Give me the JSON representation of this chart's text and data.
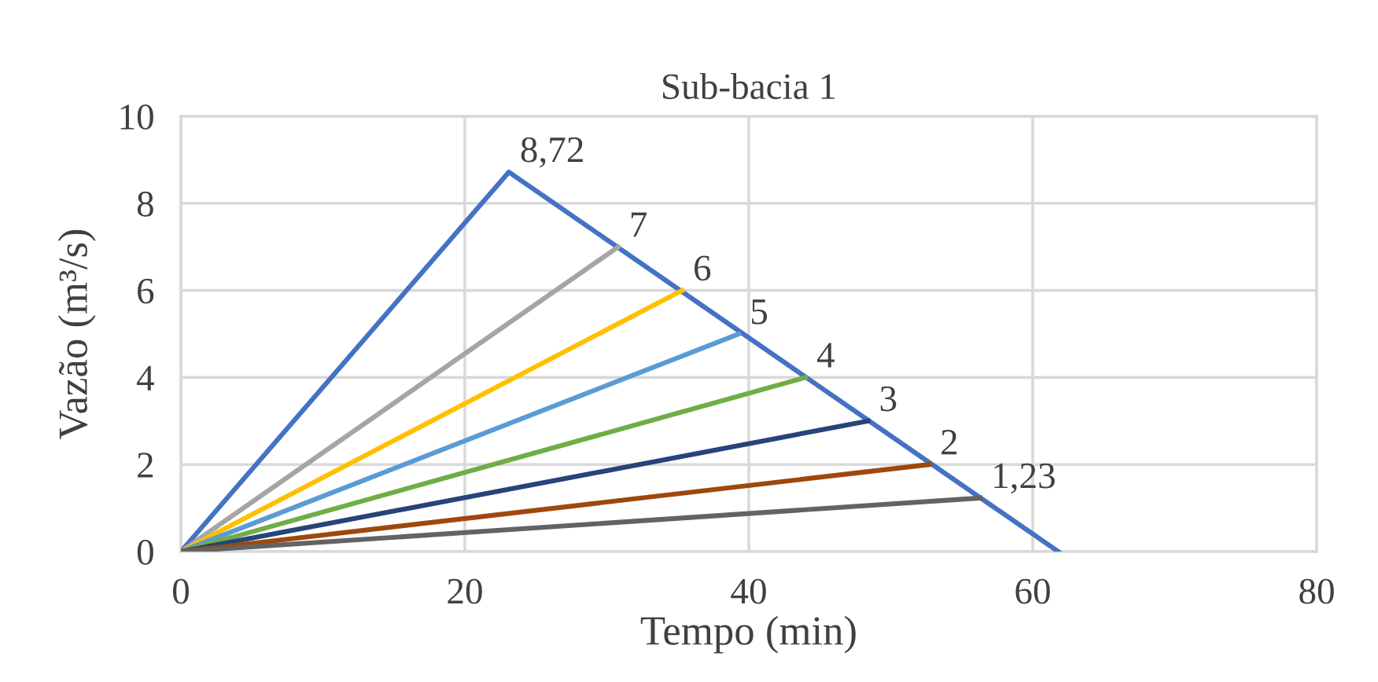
{
  "chart_data": {
    "type": "line",
    "title": "Sub-bacia 1",
    "xlabel": "Tempo (min)",
    "ylabel": "Vazão (m³/s)",
    "xlim": [
      0,
      80
    ],
    "xticks": [
      0,
      20,
      40,
      60,
      80
    ],
    "ylim": [
      0,
      10
    ],
    "yticks": [
      0,
      2,
      4,
      6,
      8,
      10
    ],
    "grid": true,
    "marker": "none",
    "line_style": "solid",
    "series": [
      {
        "color": "#4472c4",
        "x": [
          0,
          23.1,
          61.8
        ],
        "values": [
          0,
          8.72,
          0
        ],
        "value_labels": [
          null,
          "8,72",
          null
        ]
      },
      {
        "color": "#a5a5a5",
        "x": [
          0,
          30.8
        ],
        "values": [
          0,
          7
        ],
        "value_labels": [
          null,
          "7"
        ]
      },
      {
        "color": "#ffc000",
        "x": [
          0,
          35.3
        ],
        "values": [
          0,
          6
        ],
        "value_labels": [
          null,
          "6"
        ]
      },
      {
        "color": "#5b9bd5",
        "x": [
          0,
          39.3
        ],
        "values": [
          0,
          5
        ],
        "value_labels": [
          null,
          "5"
        ]
      },
      {
        "color": "#70ad47",
        "x": [
          0,
          44.0
        ],
        "values": [
          0,
          4
        ],
        "value_labels": [
          null,
          "4"
        ]
      },
      {
        "color": "#264478",
        "x": [
          0,
          48.4
        ],
        "values": [
          0,
          3
        ],
        "value_labels": [
          null,
          "3"
        ]
      },
      {
        "color": "#9e480e",
        "x": [
          0,
          52.7
        ],
        "values": [
          0,
          2
        ],
        "value_labels": [
          null,
          "2"
        ]
      },
      {
        "color": "#636363",
        "x": [
          0,
          56.3
        ],
        "values": [
          0,
          1.23
        ],
        "value_labels": [
          null,
          "1,23"
        ]
      }
    ]
  }
}
